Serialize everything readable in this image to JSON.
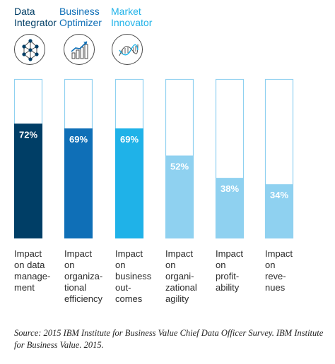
{
  "legend": [
    {
      "label": "Data\nIntegrator",
      "color": "#003e66",
      "icon": "network-globe-icon"
    },
    {
      "label": "Business\nOptimizer",
      "color": "#0f6fb7",
      "icon": "growth-chart-icon"
    },
    {
      "label": "Market\nInnovator",
      "color": "#1fb2e8",
      "icon": "dna-helix-icon"
    }
  ],
  "chart_data": {
    "type": "bar",
    "categories": [
      "Impact\non data\nmanage-\nment",
      "Impact\non\norganiza-\ntional\nefficiency",
      "Impact\non\nbusiness\nout-\ncomes",
      "Impact\non\norgani-\nzational\nagility",
      "Impact\non\nprofit-\nability",
      "Impact\non\nreve-\nnues"
    ],
    "values": [
      72,
      69,
      69,
      52,
      38,
      34
    ],
    "value_labels": [
      "72%",
      "69%",
      "69%",
      "52%",
      "38%",
      "34%"
    ],
    "colors": [
      "#003e66",
      "#0f6fb7",
      "#1fb2e8",
      "#8fd1f0",
      "#8fd1f0",
      "#8fd1f0"
    ],
    "outline_color": "#8fd1f0",
    "ylim": [
      0,
      100
    ],
    "grid": false
  },
  "source": "Source: 2015 IBM Institute for Business Value Chief Data Officer Survey. IBM Institute for Business Value. 2015."
}
